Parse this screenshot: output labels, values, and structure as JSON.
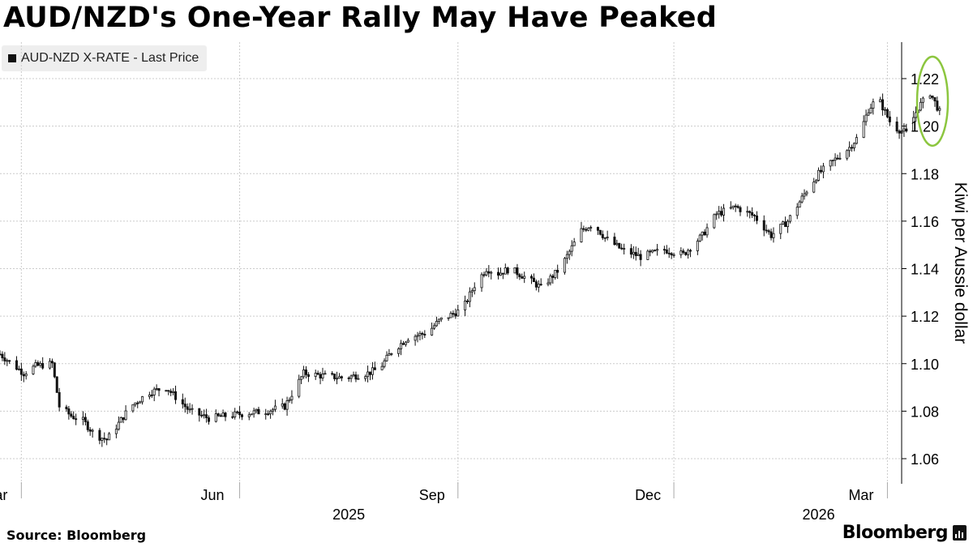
{
  "title": "AUD/NZD's One-Year Rally May Have Peaked",
  "legend": {
    "label": "AUD-NZD X-RATE - Last Price"
  },
  "footer": {
    "source": "Source: Bloomberg",
    "brand": "Bloomberg"
  },
  "colors": {
    "candle": "#111111",
    "grid": "#cccccc",
    "highlight": "#8cc63f"
  },
  "chart_data": {
    "type": "candlestick",
    "title": "AUD/NZD's One-Year Rally May Have Peaked",
    "ylabel": "Kiwi per Aussie dollar",
    "series_name": "AUD-NZD X-RATE - Last Price",
    "ylim": [
      1.05,
      1.23
    ],
    "xlim_days": [
      0,
      380
    ],
    "y_ticks": [
      1.06,
      1.08,
      1.1,
      1.12,
      1.14,
      1.16,
      1.18,
      1.2,
      1.22
    ],
    "y_tick_labels": [
      "1.06",
      "1.08",
      "1.10",
      "1.12",
      "1.14",
      "1.16",
      "1.18",
      "1.20",
      "1.22"
    ],
    "x_ticks": [
      {
        "label": "Mar",
        "day": 9
      },
      {
        "label": "Jun",
        "day": 101
      },
      {
        "label": "Sep",
        "day": 193
      },
      {
        "label": "Dec",
        "day": 284
      },
      {
        "label": "Mar",
        "day": 374
      }
    ],
    "year_labels": [
      {
        "label": "2025",
        "day": 147
      },
      {
        "label": "2026",
        "day": 345
      }
    ],
    "close_trend": [
      [
        0,
        1.104
      ],
      [
        10,
        1.096
      ],
      [
        15,
        1.099
      ],
      [
        22,
        1.1
      ],
      [
        25,
        1.082
      ],
      [
        30,
        1.078
      ],
      [
        35,
        1.076
      ],
      [
        40,
        1.07
      ],
      [
        45,
        1.068
      ],
      [
        48,
        1.072
      ],
      [
        55,
        1.082
      ],
      [
        63,
        1.088
      ],
      [
        70,
        1.09
      ],
      [
        74,
        1.086
      ],
      [
        80,
        1.08
      ],
      [
        88,
        1.077
      ],
      [
        95,
        1.078
      ],
      [
        103,
        1.079
      ],
      [
        112,
        1.08
      ],
      [
        120,
        1.082
      ],
      [
        128,
        1.096
      ],
      [
        135,
        1.095
      ],
      [
        145,
        1.094
      ],
      [
        155,
        1.096
      ],
      [
        160,
        1.098
      ],
      [
        165,
        1.105
      ],
      [
        172,
        1.111
      ],
      [
        180,
        1.113
      ],
      [
        185,
        1.118
      ],
      [
        195,
        1.123
      ],
      [
        200,
        1.133
      ],
      [
        205,
        1.14
      ],
      [
        210,
        1.138
      ],
      [
        215,
        1.14
      ],
      [
        222,
        1.136
      ],
      [
        228,
        1.132
      ],
      [
        236,
        1.14
      ],
      [
        245,
        1.156
      ],
      [
        250,
        1.159
      ],
      [
        255,
        1.153
      ],
      [
        262,
        1.148
      ],
      [
        270,
        1.145
      ],
      [
        280,
        1.148
      ],
      [
        288,
        1.146
      ],
      [
        296,
        1.154
      ],
      [
        302,
        1.163
      ],
      [
        310,
        1.166
      ],
      [
        318,
        1.162
      ],
      [
        325,
        1.154
      ],
      [
        332,
        1.16
      ],
      [
        340,
        1.173
      ],
      [
        345,
        1.18
      ],
      [
        352,
        1.186
      ],
      [
        358,
        1.191
      ],
      [
        362,
        1.196
      ],
      [
        366,
        1.207
      ],
      [
        370,
        1.212
      ],
      [
        376,
        1.2
      ],
      [
        382,
        1.197
      ],
      [
        387,
        1.208
      ],
      [
        392,
        1.214
      ],
      [
        396,
        1.206
      ]
    ],
    "annotation": {
      "type": "ellipse",
      "center_day": 393,
      "center_value": 1.2105,
      "note": "green circle around latest peak"
    }
  }
}
